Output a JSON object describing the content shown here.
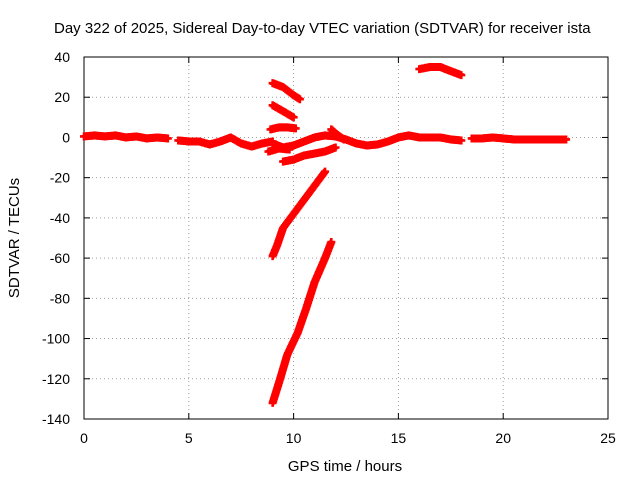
{
  "chart_data": {
    "type": "scatter",
    "title": "Day 322 of 2025, Sidereal Day-to-day VTEC variation (SDTVAR) for receiver ista",
    "xlabel": "GPS time / hours",
    "ylabel": "SDTVAR / TECUs",
    "xlim": [
      0,
      25
    ],
    "ylim": [
      -140,
      40
    ],
    "xticks": [
      0,
      5,
      10,
      15,
      20,
      25
    ],
    "yticks": [
      40,
      20,
      0,
      -20,
      -40,
      -60,
      -80,
      -100,
      -120,
      -140
    ],
    "grid": true,
    "marker": "plus",
    "color": "#ff0000",
    "series": [
      {
        "points": [
          [
            0,
            0.5
          ],
          [
            0.5,
            1
          ],
          [
            1,
            0.5
          ],
          [
            1.5,
            1
          ],
          [
            2,
            0
          ],
          [
            2.5,
            0.5
          ],
          [
            3,
            -0.5
          ],
          [
            3.5,
            0
          ],
          [
            4,
            -0.5
          ]
        ]
      },
      {
        "points": [
          [
            4.5,
            -1.5
          ],
          [
            5,
            -2
          ],
          [
            5.5,
            -2
          ],
          [
            6,
            -3.5
          ],
          [
            6.5,
            -2
          ],
          [
            7,
            0
          ],
          [
            7.5,
            -3
          ],
          [
            8,
            -4.5
          ],
          [
            8.5,
            -3
          ],
          [
            9,
            -2
          ]
        ]
      },
      {
        "points": [
          [
            9,
            -3
          ],
          [
            9.5,
            -5
          ],
          [
            10,
            -4
          ],
          [
            10.5,
            -2
          ],
          [
            11,
            0
          ],
          [
            11.5,
            1
          ],
          [
            12,
            0.5
          ],
          [
            12.5,
            -1
          ],
          [
            13,
            -3
          ],
          [
            13.5,
            -4
          ],
          [
            14,
            -3.5
          ],
          [
            14.5,
            -2
          ],
          [
            15,
            0
          ],
          [
            15.5,
            1
          ],
          [
            16,
            0
          ],
          [
            16.5,
            0
          ],
          [
            17,
            0
          ],
          [
            17.5,
            -1
          ],
          [
            18,
            -1.5
          ]
        ]
      },
      {
        "points": [
          [
            18.5,
            -0.5
          ],
          [
            19,
            -0.5
          ],
          [
            19.5,
            0
          ],
          [
            20,
            -0.5
          ],
          [
            20.5,
            -1
          ],
          [
            21,
            -1
          ],
          [
            21.5,
            -1
          ],
          [
            22,
            -1
          ],
          [
            22.5,
            -1
          ],
          [
            23,
            -1
          ]
        ]
      },
      {
        "points": [
          [
            9,
            27
          ],
          [
            9.5,
            25
          ],
          [
            10,
            21
          ],
          [
            10.3,
            19
          ]
        ]
      },
      {
        "points": [
          [
            9,
            16
          ],
          [
            9.5,
            13
          ],
          [
            10,
            10
          ]
        ]
      },
      {
        "points": [
          [
            8.9,
            4
          ],
          [
            9.3,
            5
          ],
          [
            9.7,
            5
          ],
          [
            10.1,
            4.5
          ]
        ]
      },
      {
        "points": [
          [
            8.8,
            -7
          ],
          [
            9.3,
            -5.5
          ],
          [
            9.8,
            -6
          ]
        ]
      },
      {
        "points": [
          [
            9.5,
            -12
          ],
          [
            10,
            -11
          ],
          [
            10.5,
            -9
          ],
          [
            11,
            -8
          ],
          [
            11.5,
            -7
          ],
          [
            12,
            -5
          ]
        ]
      },
      {
        "points": [
          [
            11.8,
            4
          ],
          [
            12,
            2
          ],
          [
            12.4,
            -1
          ]
        ]
      },
      {
        "points": [
          [
            16,
            34
          ],
          [
            16.5,
            35
          ],
          [
            17,
            35
          ],
          [
            17.5,
            33
          ],
          [
            18,
            31
          ]
        ]
      },
      {
        "points": [
          [
            9,
            -59
          ],
          [
            9.2,
            -54
          ],
          [
            9.5,
            -45
          ],
          [
            10,
            -38
          ],
          [
            10.5,
            -31
          ],
          [
            11,
            -24
          ],
          [
            11.5,
            -17
          ]
        ]
      },
      {
        "points": [
          [
            9,
            -132
          ],
          [
            9.3,
            -122
          ],
          [
            9.7,
            -108
          ],
          [
            10.2,
            -97
          ],
          [
            10.6,
            -85
          ],
          [
            11,
            -72
          ],
          [
            11.5,
            -60
          ],
          [
            11.8,
            -52
          ]
        ]
      }
    ]
  }
}
